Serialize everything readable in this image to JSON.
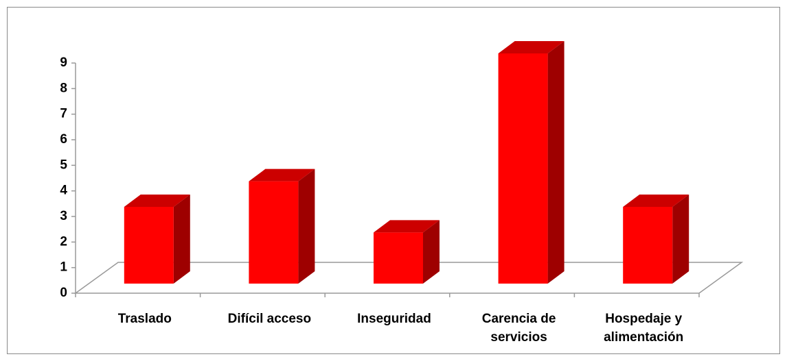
{
  "chart_data": {
    "type": "bar3d",
    "categories": [
      "Traslado",
      "Difícil acceso",
      "Inseguridad",
      "Carencia de servicios",
      "Hospedaje y alimentación"
    ],
    "values": [
      3,
      4,
      2,
      9,
      3
    ],
    "color": "#ff0000",
    "ylim": [
      0,
      9
    ],
    "yticks": [
      0,
      1,
      2,
      3,
      4,
      5,
      6,
      7,
      8,
      9
    ]
  }
}
